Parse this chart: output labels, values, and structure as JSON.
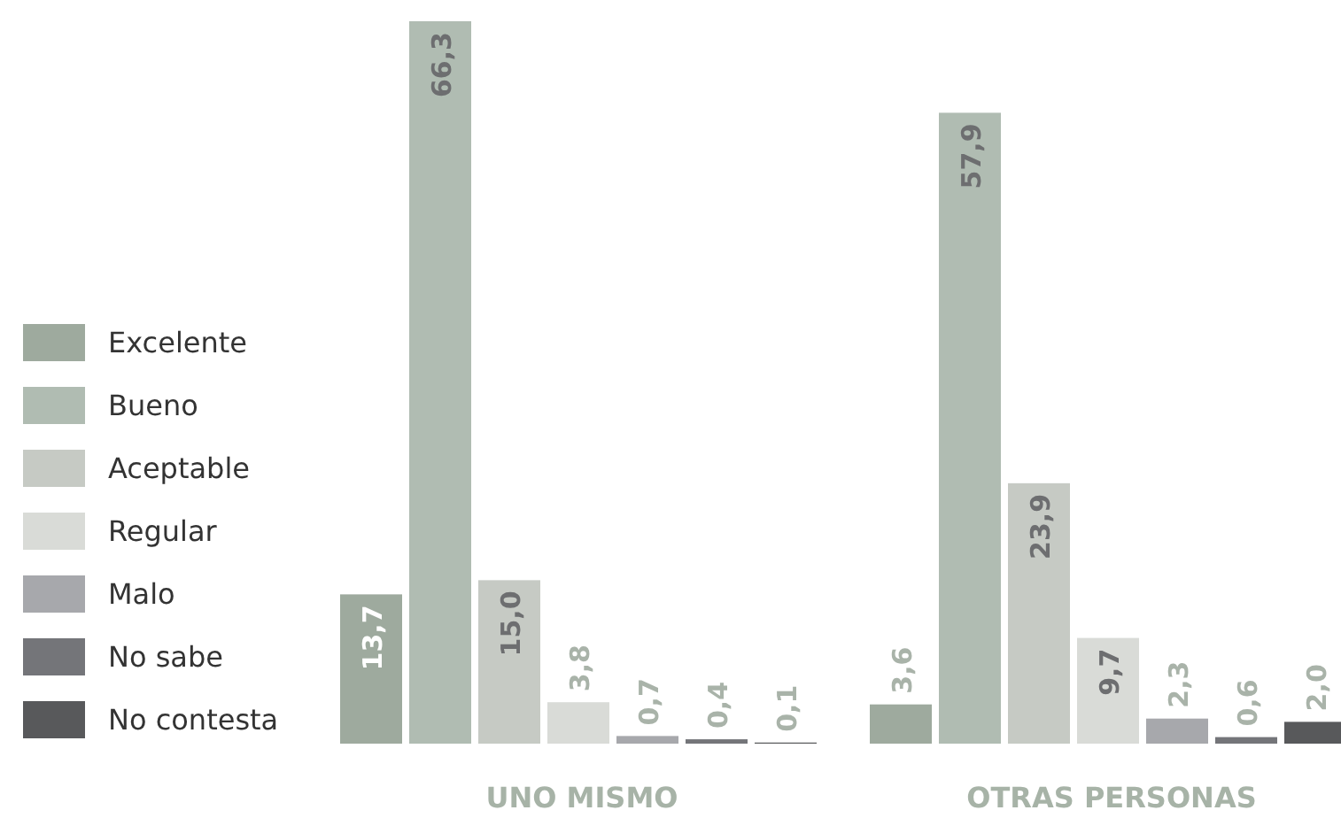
{
  "chart_data": {
    "type": "bar",
    "categories": [
      "UNO MISMO",
      "OTRAS PERSONAS"
    ],
    "legend": "left",
    "series": [
      {
        "name": "Excelente",
        "color": "#9eaa9e",
        "values": [
          13.7,
          3.6
        ],
        "value_labels": [
          "13,7",
          "3,6"
        ]
      },
      {
        "name": "Bueno",
        "color": "#b0bcb2",
        "values": [
          66.3,
          57.9
        ],
        "value_labels": [
          "66,3",
          "57,9"
        ]
      },
      {
        "name": "Aceptable",
        "color": "#c6cac4",
        "values": [
          15.0,
          23.9
        ],
        "value_labels": [
          "15,0",
          "23,9"
        ]
      },
      {
        "name": "Regular",
        "color": "#d9dbd7",
        "values": [
          3.8,
          9.7
        ],
        "value_labels": [
          "3,8",
          "9,7"
        ]
      },
      {
        "name": "Malo",
        "color": "#a7a8ac",
        "values": [
          0.7,
          2.3
        ],
        "value_labels": [
          "0,7",
          "2,3"
        ]
      },
      {
        "name": "No sabe",
        "color": "#747579",
        "values": [
          0.4,
          0.6
        ],
        "value_labels": [
          "0,4",
          "0,6"
        ]
      },
      {
        "name": "No contesta",
        "color": "#58595b",
        "values": [
          0.1,
          2.0
        ],
        "value_labels": [
          "0,1",
          "2,0"
        ]
      }
    ]
  }
}
